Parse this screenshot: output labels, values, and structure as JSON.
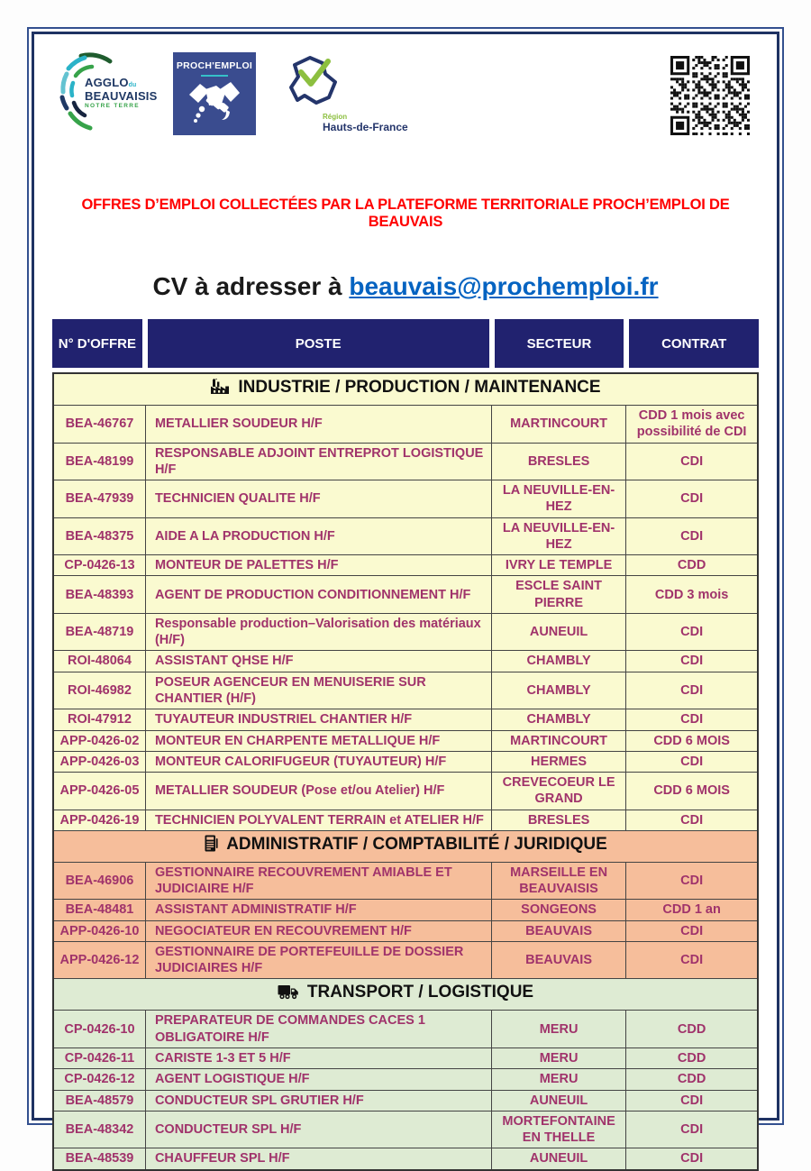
{
  "header": {
    "logos": {
      "agglo": {
        "line1": "AGGLO",
        "du": "du",
        "line2": "BEAUVAISIS",
        "tagline": "NOTRE TERRE"
      },
      "prochemploi": {
        "title": "PROCH'EMPLOI"
      },
      "region": {
        "small": "Région",
        "name": "Hauts-de-France"
      }
    }
  },
  "banner": {
    "title": "OFFRES D’EMPLOI COLLECTÉES PAR LA PLATEFORME TERRITORIALE PROCH’EMPLOI DE BEAUVAIS"
  },
  "cv": {
    "prefix": "CV à adresser à ",
    "email": "beauvais@prochemploi.fr"
  },
  "table": {
    "columns": [
      "N° D'OFFRE",
      "POSTE",
      "SECTEUR",
      "CONTRAT"
    ],
    "sections": [
      {
        "icon": "factory-icon",
        "title": "INDUSTRIE / PRODUCTION / MAINTENANCE",
        "bg": "#FAFAD0",
        "rows": [
          [
            "BEA-46767",
            "METALLIER SOUDEUR H/F",
            "MARTINCOURT",
            "CDD 1 mois avec possibilité de CDI"
          ],
          [
            "BEA-48199",
            "RESPONSABLE ADJOINT ENTREPROT LOGISTIQUE H/F",
            "BRESLES",
            "CDI"
          ],
          [
            "BEA-47939",
            "TECHNICIEN QUALITE H/F",
            "LA NEUVILLE-EN-HEZ",
            "CDI"
          ],
          [
            "BEA-48375",
            "AIDE A LA PRODUCTION H/F",
            "LA NEUVILLE-EN-HEZ",
            "CDI"
          ],
          [
            "CP-0426-13",
            "MONTEUR DE PALETTES H/F",
            "IVRY LE TEMPLE",
            "CDD"
          ],
          [
            "BEA-48393",
            "AGENT DE PRODUCTION CONDITIONNEMENT H/F",
            "ESCLE SAINT PIERRE",
            "CDD 3 mois"
          ],
          [
            "BEA-48719",
            "Responsable production–Valorisation des matériaux (H/F)",
            "AUNEUIL",
            "CDI"
          ],
          [
            "ROI-48064",
            "ASSISTANT QHSE H/F",
            "CHAMBLY",
            "CDI"
          ],
          [
            "ROI-46982",
            "POSEUR AGENCEUR EN MENUISERIE SUR CHANTIER (H/F)",
            "CHAMBLY",
            "CDI"
          ],
          [
            "ROI-47912",
            "TUYAUTEUR INDUSTRIEL CHANTIER H/F",
            "CHAMBLY",
            "CDI"
          ],
          [
            "APP-0426-02",
            "MONTEUR EN CHARPENTE METALLIQUE H/F",
            "MARTINCOURT",
            "CDD 6 MOIS"
          ],
          [
            "APP-0426-03",
            "MONTEUR CALORIFUGEUR (TUYAUTEUR) H/F",
            "HERMES",
            "CDI"
          ],
          [
            "APP-0426-05",
            "METALLIER SOUDEUR (Pose et/ou Atelier)  H/F",
            "CREVECOEUR LE GRAND",
            "CDD 6 MOIS"
          ],
          [
            "APP-0426-19",
            "TECHNICIEN POLYVALENT TERRAIN et ATELIER H/F",
            "BRESLES",
            "CDI"
          ]
        ]
      },
      {
        "icon": "calculator-icon",
        "title": "ADMINISTRATIF / COMPTABILITÉ / JURIDIQUE",
        "bg": "#F6BE9B",
        "rows": [
          [
            "BEA-46906",
            "GESTIONNAIRE RECOUVREMENT AMIABLE ET JUDICIAIRE H/F",
            "MARSEILLE EN BEAUVAISIS",
            "CDI"
          ],
          [
            "BEA-48481",
            "ASSISTANT ADMINISTRATIF H/F",
            "SONGEONS",
            "CDD 1 an"
          ],
          [
            "APP-0426-10",
            "NEGOCIATEUR EN RECOUVREMENT H/F",
            "BEAUVAIS",
            "CDI"
          ],
          [
            "APP-0426-12",
            "GESTIONNAIRE DE PORTEFEUILLE DE DOSSIER JUDICIAIRES H/F",
            "BEAUVAIS",
            "CDI"
          ]
        ]
      },
      {
        "icon": "truck-icon",
        "title": "TRANSPORT / LOGISTIQUE",
        "bg": "#DEEBD3",
        "rows": [
          [
            "CP-0426-10",
            "PREPARATEUR DE COMMANDES CACES 1 OBLIGATOIRE H/F",
            "MERU",
            "CDD"
          ],
          [
            "CP-0426-11",
            "CARISTE 1-3 ET 5  H/F",
            "MERU",
            "CDD"
          ],
          [
            "CP-0426-12",
            "AGENT LOGISTIQUE H/F",
            "MERU",
            "CDD"
          ],
          [
            "BEA-48579",
            "CONDUCTEUR SPL GRUTIER H/F",
            "AUNEUIL",
            "CDI"
          ],
          [
            "BEA-48342",
            "CONDUCTEUR SPL H/F",
            "MORTEFONTAINE EN THELLE",
            "CDI"
          ],
          [
            "BEA-48539",
            "CHAUFFEUR SPL H/F",
            "AUNEUIL",
            "CDI"
          ]
        ]
      }
    ]
  },
  "colors": {
    "header_navy": "#21226F",
    "title_red": "#FF0000",
    "link_blue": "#0563C1",
    "row_text_magenta": "#A0336B",
    "section_industry_bg": "#FAFAD0",
    "section_admin_bg": "#F6BE9B",
    "section_transport_bg": "#DEEBD3",
    "frame_navy": "#1F3263"
  }
}
